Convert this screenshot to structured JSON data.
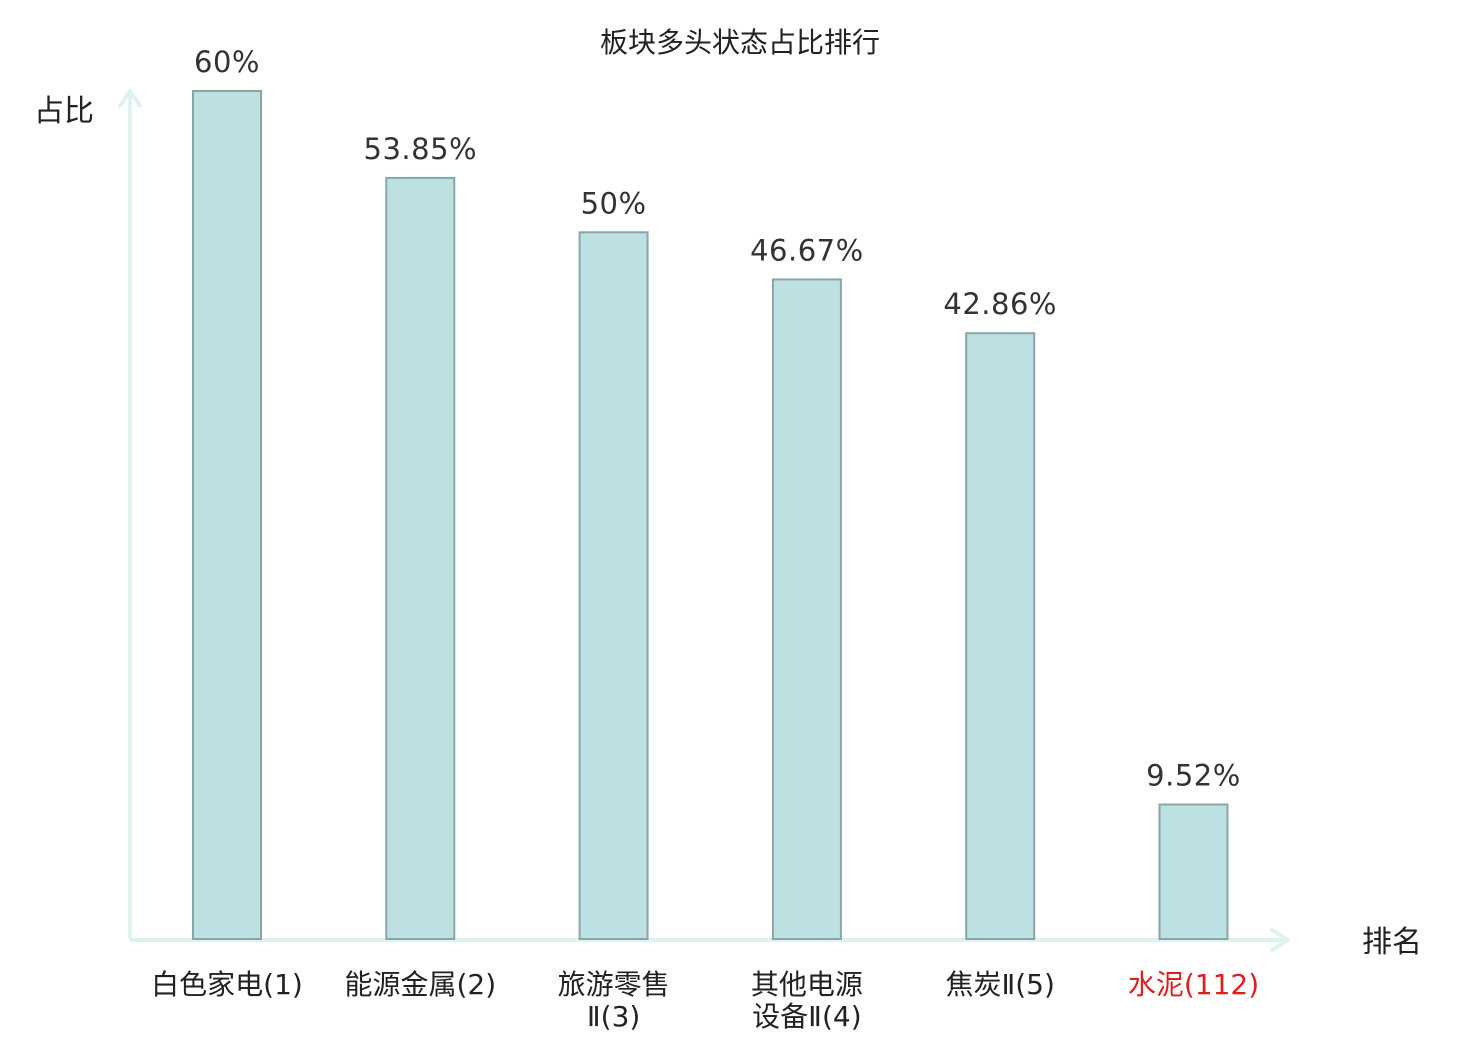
{
  "chart_data": {
    "type": "bar",
    "title": "板块多头状态占比排行",
    "xlabel": "排名",
    "ylabel": "占比",
    "ylim": [
      0,
      60
    ],
    "grid": false,
    "legend": "none",
    "categories": [
      {
        "name": "白色家电",
        "rank": "(1)",
        "lines": [
          "白色家电(1)"
        ],
        "highlight": false
      },
      {
        "name": "能源金属",
        "rank": "(2)",
        "lines": [
          "能源金属(2)"
        ],
        "highlight": false
      },
      {
        "name": "旅游零售Ⅱ",
        "rank": "(3)",
        "lines": [
          "旅游零售",
          "Ⅱ(3)"
        ],
        "highlight": false
      },
      {
        "name": "其他电源设备Ⅱ",
        "rank": "(4)",
        "lines": [
          "其他电源",
          "设备Ⅱ(4)"
        ],
        "highlight": false
      },
      {
        "name": "焦炭Ⅱ",
        "rank": "(5)",
        "lines": [
          "焦炭Ⅱ(5)"
        ],
        "highlight": false
      },
      {
        "name": "水泥",
        "rank": "(112)",
        "lines": [
          "水泥(112)"
        ],
        "highlight": true
      }
    ],
    "values": [
      60,
      53.85,
      50,
      46.67,
      42.86,
      9.52
    ],
    "value_labels": [
      "60%",
      "53.85%",
      "50%",
      "46.67%",
      "42.86%",
      "9.52%"
    ]
  },
  "colors": {
    "bar_fill": "#bde0e3",
    "bar_stroke": "#88a6aa",
    "axis": "#e0f2f0",
    "text": "#222222",
    "value_text": "#333333",
    "highlight": "#dd1f1f"
  }
}
